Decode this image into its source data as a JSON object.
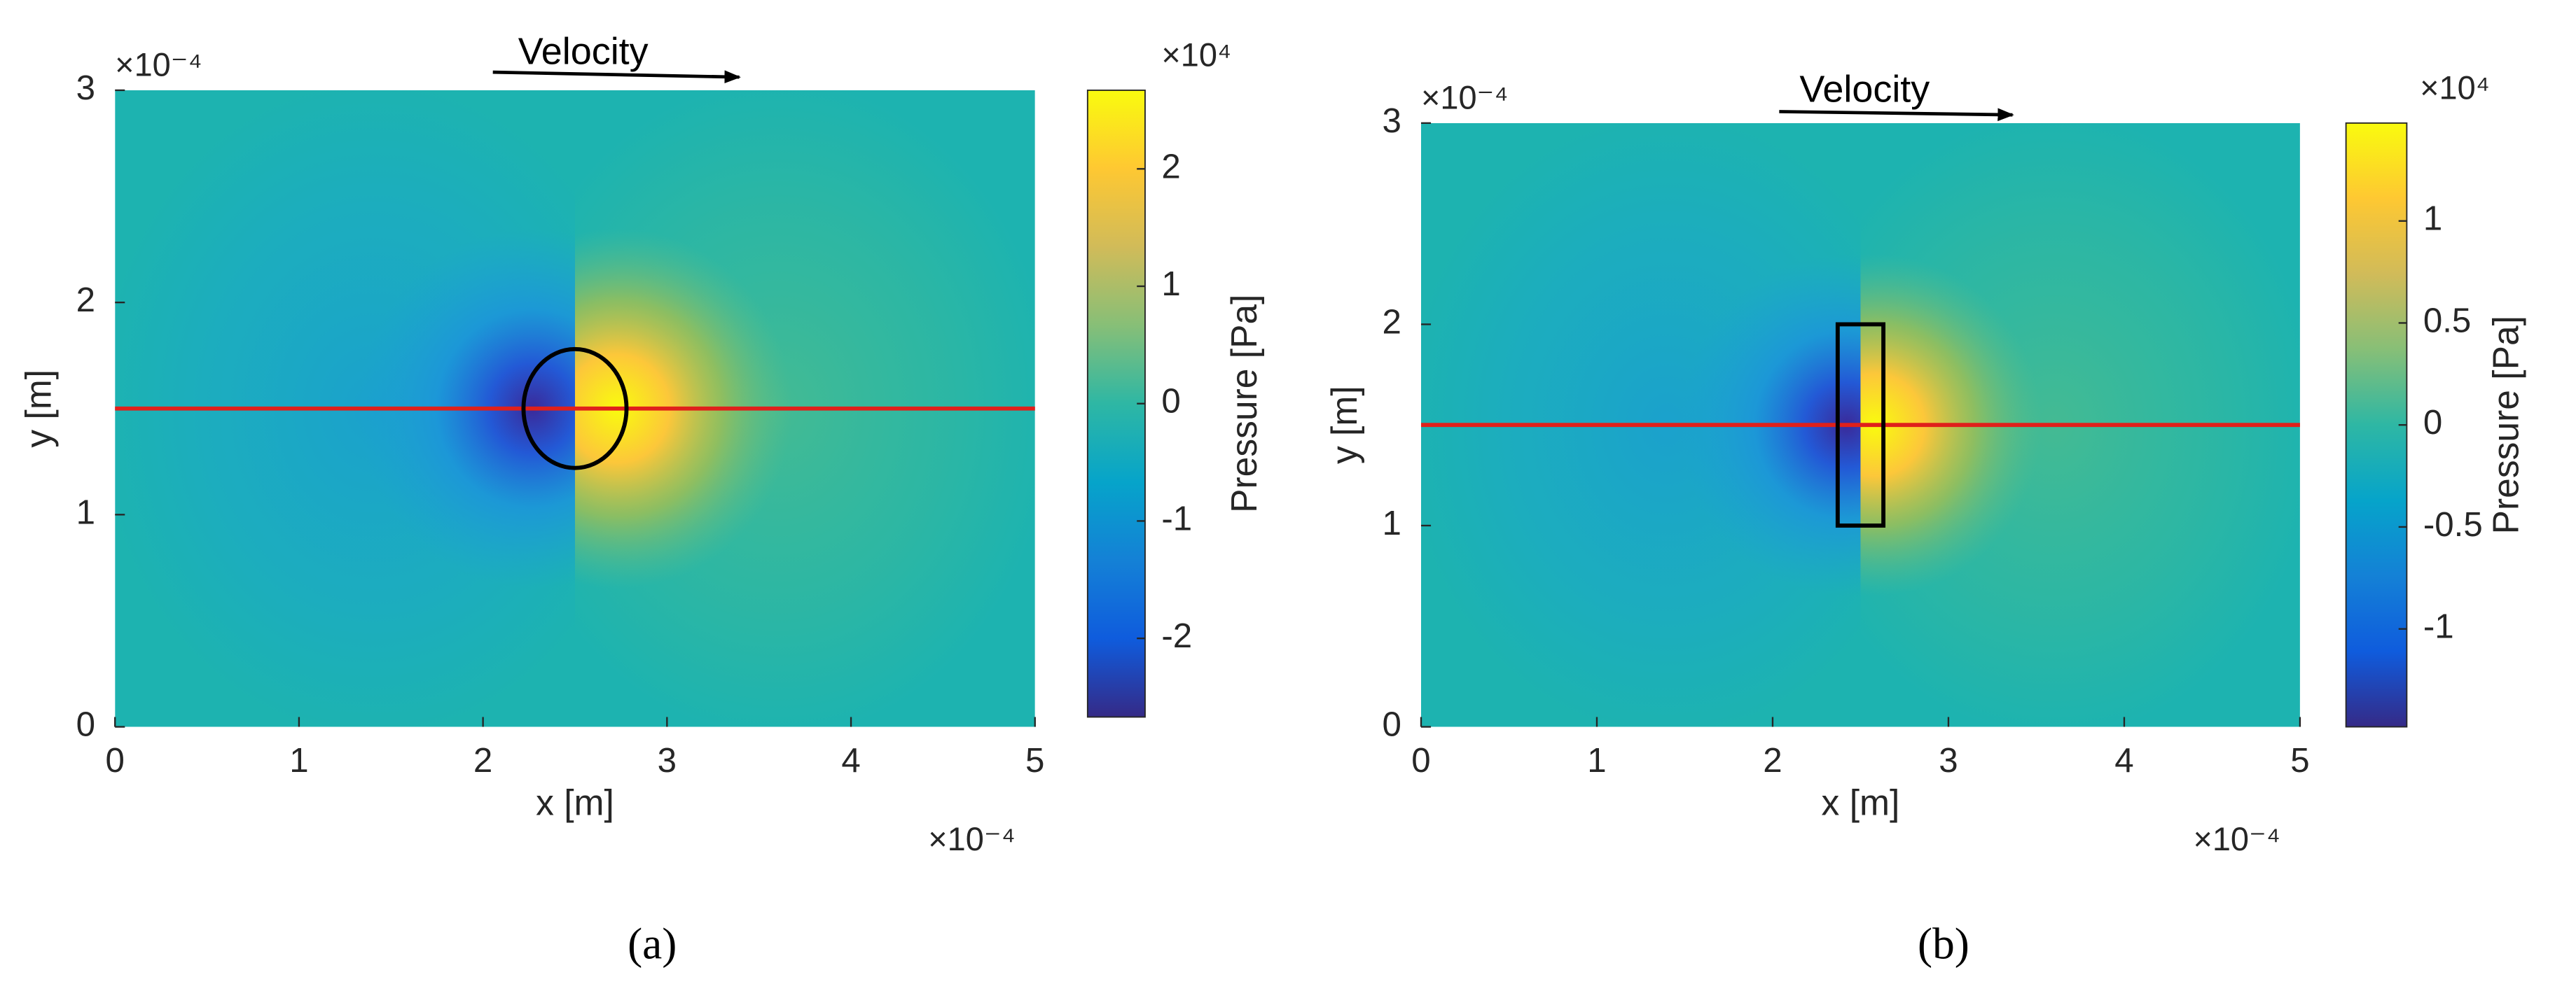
{
  "chart_data": [
    {
      "type": "heatmap",
      "panel_label": "(a)",
      "annotation": "Velocity",
      "xlabel": "x [m]",
      "ylabel": "y [m]",
      "xlim": [
        0,
        5
      ],
      "ylim": [
        0,
        3
      ],
      "xticks": [
        0,
        1,
        2,
        3,
        4,
        5
      ],
      "yticks": [
        0,
        1,
        2,
        3
      ],
      "x_multiplier": "×10⁻⁴",
      "y_multiplier": "×10⁻⁴",
      "colorbar": {
        "label": "Pressure [Pa]",
        "clim": [
          -2.67,
          2.67
        ],
        "ticks": [
          -2,
          -1,
          0,
          1,
          2
        ],
        "multiplier": "×10⁴"
      },
      "obstacle": {
        "shape": "ellipse",
        "center": [
          2.5,
          1.5
        ],
        "radius": 0.28
      },
      "line_y": 1.5,
      "line_color": "#e0201b"
    },
    {
      "type": "heatmap",
      "panel_label": "(b)",
      "annotation": "Velocity",
      "xlabel": "x [m]",
      "ylabel": "y [m]",
      "xlim": [
        0,
        5
      ],
      "ylim": [
        0,
        3
      ],
      "xticks": [
        0,
        1,
        2,
        3,
        4,
        5
      ],
      "yticks": [
        0,
        1,
        2,
        3
      ],
      "x_multiplier": "×10⁻⁴",
      "y_multiplier": "×10⁻⁴",
      "colorbar": {
        "label": "Pressure [Pa]",
        "clim": [
          -1.48,
          1.48
        ],
        "ticks": [
          -1,
          -0.5,
          0,
          0.5,
          1
        ],
        "multiplier": "×10⁴"
      },
      "obstacle": {
        "shape": "rectangle",
        "xrange": [
          2.37,
          2.63
        ],
        "yrange": [
          1,
          2
        ]
      },
      "line_y": 1.5,
      "line_color": "#e0201b"
    }
  ]
}
